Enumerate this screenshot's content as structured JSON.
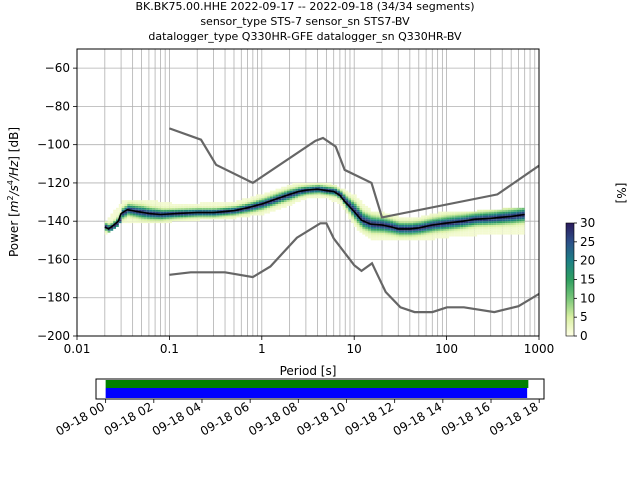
{
  "title_lines": [
    "BK.BK75.00.HHE   2022-09-17 -- 2022-09-18  (34/34 segments)",
    "sensor_type STS-7 sensor_sn STS7-BV",
    "datalogger_type Q330HR-GFE datalogger_sn Q330HR-BV"
  ],
  "colorbar": {
    "label": "[%]",
    "ticks": [
      "0",
      "5",
      "10",
      "15",
      "20",
      "25",
      "30"
    ],
    "range": [
      0,
      30
    ],
    "colormap": [
      "#ffffe5",
      "#d9f0a3",
      "#78c679",
      "#2e9e60",
      "#1d7f86",
      "#2c4f88",
      "#2b1a5c"
    ]
  },
  "chart_data": [
    {
      "type": "heatmap",
      "xlabel": "Period [s]",
      "ylabel_parts": [
        "Power [",
        "m",
        "2",
        "/",
        "s",
        "4",
        "/",
        "Hz",
        "] [dB]"
      ],
      "x_scale": "log",
      "xlim": [
        0.01,
        1000
      ],
      "ylim": [
        -200,
        -50
      ],
      "x_ticks": [
        {
          "v": 0.01,
          "label": "0.01"
        },
        {
          "v": 0.1,
          "label": "0.1"
        },
        {
          "v": 1,
          "label": "1"
        },
        {
          "v": 10,
          "label": "10"
        },
        {
          "v": 100,
          "label": "100"
        },
        {
          "v": 1000,
          "label": "1000"
        }
      ],
      "y_ticks": [
        {
          "v": -60,
          "label": "−60"
        },
        {
          "v": -80,
          "label": "−80"
        },
        {
          "v": -100,
          "label": "−100"
        },
        {
          "v": -120,
          "label": "−120"
        },
        {
          "v": -140,
          "label": "−140"
        },
        {
          "v": -160,
          "label": "−160"
        },
        {
          "v": -180,
          "label": "−180"
        },
        {
          "v": -200,
          "label": "−200"
        }
      ],
      "grid": true,
      "noise_model_high": [
        [
          0.1,
          -91.5
        ],
        [
          0.22,
          -97.4
        ],
        [
          0.32,
          -110.5
        ],
        [
          0.8,
          -120
        ],
        [
          3.8,
          -98
        ],
        [
          4.6,
          -96.5
        ],
        [
          6.3,
          -101
        ],
        [
          7.9,
          -113.2
        ],
        [
          15.4,
          -120
        ],
        [
          20,
          -138
        ],
        [
          354.8,
          -126
        ],
        [
          1000,
          -111
        ]
      ],
      "noise_model_low": [
        [
          0.1,
          -168
        ],
        [
          0.17,
          -166.7
        ],
        [
          0.4,
          -166.7
        ],
        [
          0.8,
          -169.2
        ],
        [
          1.24,
          -163.7
        ],
        [
          2.4,
          -148.6
        ],
        [
          4.3,
          -141.1
        ],
        [
          5,
          -141.1
        ],
        [
          6,
          -149
        ],
        [
          10,
          -163
        ],
        [
          12,
          -166
        ],
        [
          15.6,
          -162
        ],
        [
          21.9,
          -177
        ],
        [
          31.6,
          -185
        ],
        [
          45,
          -187.5
        ],
        [
          70,
          -187.5
        ],
        [
          101,
          -185
        ],
        [
          154,
          -185
        ],
        [
          328,
          -187.5
        ],
        [
          600,
          -184.4
        ],
        [
          1000,
          -178
        ]
      ],
      "mean_curve": [
        [
          0.02,
          -143
        ],
        [
          0.022,
          -144
        ],
        [
          0.025,
          -142
        ],
        [
          0.028,
          -140
        ],
        [
          0.03,
          -136
        ],
        [
          0.035,
          -134
        ],
        [
          0.045,
          -135
        ],
        [
          0.06,
          -136
        ],
        [
          0.08,
          -136.5
        ],
        [
          0.12,
          -136
        ],
        [
          0.2,
          -135.5
        ],
        [
          0.3,
          -135.5
        ],
        [
          0.5,
          -134.5
        ],
        [
          0.7,
          -133
        ],
        [
          1,
          -131
        ],
        [
          1.5,
          -128
        ],
        [
          2,
          -126
        ],
        [
          2.5,
          -124.5
        ],
        [
          3,
          -123.8
        ],
        [
          4,
          -123.3
        ],
        [
          5,
          -124
        ],
        [
          6,
          -124.5
        ],
        [
          7,
          -126.5
        ],
        [
          8,
          -130
        ],
        [
          10,
          -135
        ],
        [
          12,
          -139.5
        ],
        [
          15,
          -141.5
        ],
        [
          20,
          -142
        ],
        [
          25,
          -143
        ],
        [
          30,
          -144
        ],
        [
          40,
          -144
        ],
        [
          50,
          -143.5
        ],
        [
          70,
          -142
        ],
        [
          100,
          -141
        ],
        [
          150,
          -140
        ],
        [
          200,
          -139
        ],
        [
          300,
          -138.5
        ],
        [
          500,
          -137.5
        ],
        [
          700,
          -136.5
        ]
      ],
      "density_band": [
        [
          0.02,
          -147,
          -140
        ],
        [
          0.03,
          -140,
          -130
        ],
        [
          0.05,
          -141,
          -129
        ],
        [
          0.1,
          -140,
          -131
        ],
        [
          0.2,
          -139,
          -131
        ],
        [
          0.5,
          -138,
          -130
        ],
        [
          1,
          -136,
          -126
        ],
        [
          2,
          -131,
          -121
        ],
        [
          3,
          -128,
          -120
        ],
        [
          5,
          -128,
          -120
        ],
        [
          7,
          -131,
          -123
        ],
        [
          10,
          -143,
          -127
        ],
        [
          15,
          -150,
          -135
        ],
        [
          20,
          -150,
          -136
        ],
        [
          30,
          -150,
          -138
        ],
        [
          50,
          -150,
          -138
        ],
        [
          100,
          -148,
          -135
        ],
        [
          200,
          -147,
          -135
        ],
        [
          700,
          -147,
          -133
        ]
      ]
    },
    {
      "type": "timeline",
      "x_ticks": [
        "09-18 00",
        "09-18 02",
        "09-18 04",
        "09-18 06",
        "09-18 08",
        "09-18 10",
        "09-18 12",
        "09-18 14",
        "09-18 16",
        "09-18 18"
      ],
      "xlim_hours": [
        -0.4,
        18.2
      ],
      "bars": [
        {
          "color": "#008000",
          "start_h": 0.0,
          "end_h": 17.55
        },
        {
          "color": "#0000ff",
          "start_h": 0.0,
          "end_h": 17.5
        }
      ]
    }
  ]
}
